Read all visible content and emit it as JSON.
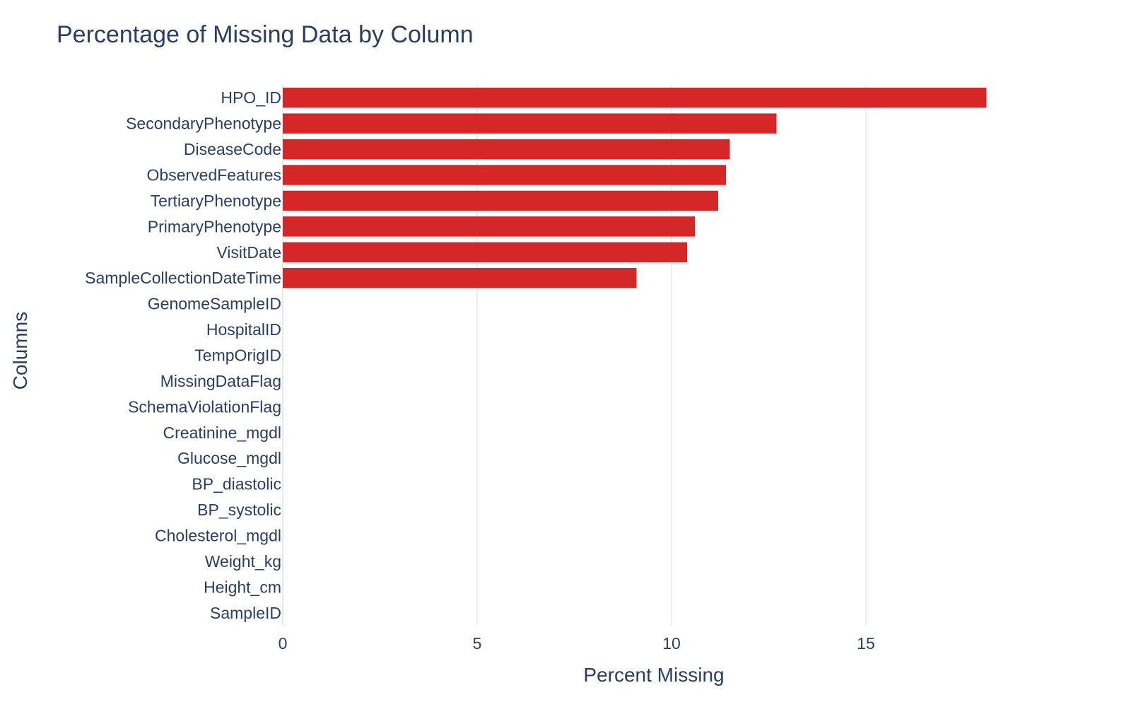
{
  "chart_data": {
    "type": "bar",
    "orientation": "horizontal",
    "title": "Percentage of Missing Data by Column",
    "xlabel": "Percent Missing",
    "ylabel": "Columns",
    "xlim": [
      0,
      20
    ],
    "x_ticks": [
      0,
      5,
      10,
      15
    ],
    "grid": true,
    "bar_color": "#d62728",
    "categories": [
      "HPO_ID",
      "SecondaryPhenotype",
      "DiseaseCode",
      "ObservedFeatures",
      "TertiaryPhenotype",
      "PrimaryPhenotype",
      "VisitDate",
      "SampleCollectionDateTime",
      "GenomeSampleID",
      "HospitalID",
      "TempOrigID",
      "MissingDataFlag",
      "SchemaViolationFlag",
      "Creatinine_mgdl",
      "Glucose_mgdl",
      "BP_diastolic",
      "BP_systolic",
      "Cholesterol_mgdl",
      "Weight_kg",
      "Height_cm",
      "SampleID"
    ],
    "values": [
      18.1,
      12.7,
      11.5,
      11.4,
      11.2,
      10.6,
      10.4,
      9.1,
      0,
      0,
      0,
      0,
      0,
      0,
      0,
      0,
      0,
      0,
      0,
      0,
      0
    ]
  }
}
